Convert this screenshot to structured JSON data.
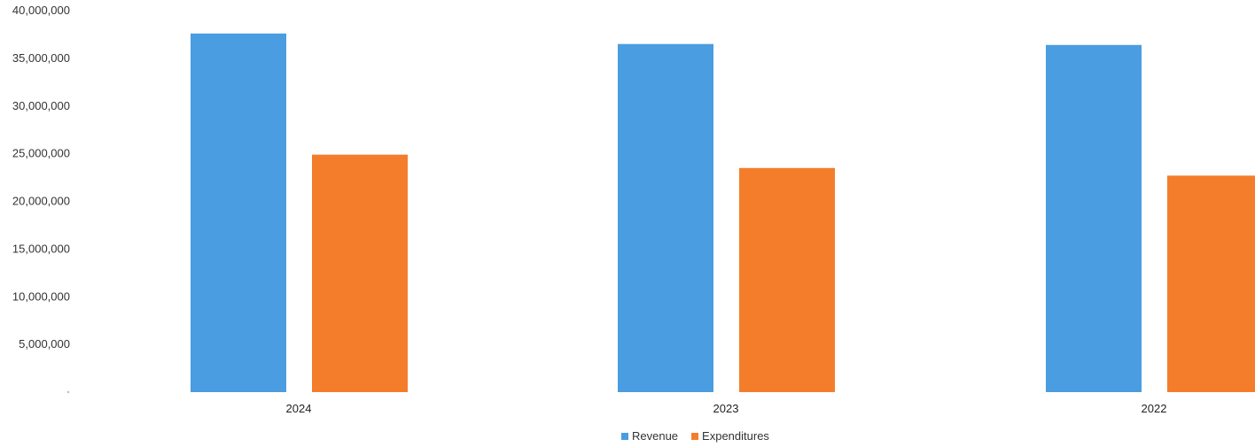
{
  "chart_data": {
    "type": "bar",
    "categories": [
      "2024",
      "2023",
      "2022"
    ],
    "series": [
      {
        "name": "Revenue",
        "values": [
          37600000,
          36500000,
          36400000
        ],
        "color": "#4a9de0"
      },
      {
        "name": "Expenditures",
        "values": [
          24900000,
          23500000,
          22700000
        ],
        "color": "#f47d2c"
      }
    ],
    "ylim": [
      0,
      40000000
    ],
    "yticks": [
      {
        "value": 40000000,
        "label": "40,000,000"
      },
      {
        "value": 35000000,
        "label": "35,000,000"
      },
      {
        "value": 30000000,
        "label": "30,000,000"
      },
      {
        "value": 25000000,
        "label": "25,000,000"
      },
      {
        "value": 20000000,
        "label": "20,000,000"
      },
      {
        "value": 15000000,
        "label": "15,000,000"
      },
      {
        "value": 10000000,
        "label": "10,000,000"
      },
      {
        "value": 5000000,
        "label": "5,000,000"
      }
    ],
    "grid": false,
    "legend_position": "bottom-center",
    "title": "",
    "xlabel": "",
    "ylabel": ""
  }
}
